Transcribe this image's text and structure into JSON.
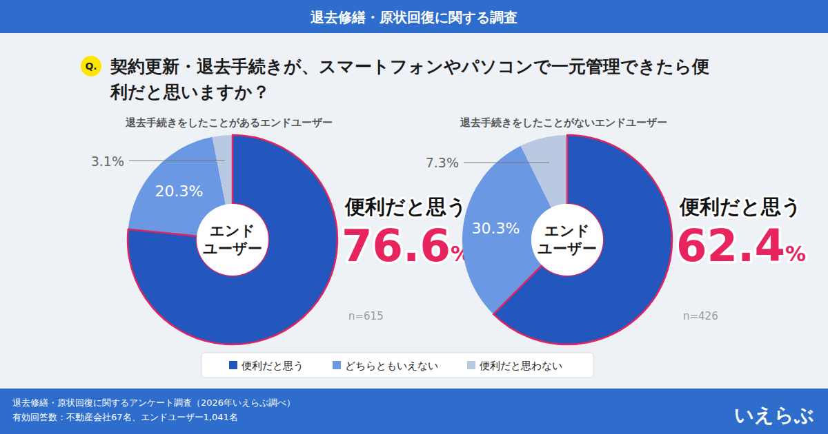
{
  "header": {
    "title": "退去修繕・原状回復に関する調査"
  },
  "question": {
    "badge": "Q.",
    "text": "契約更新・退去手続きが、スマートフォンやパソコンで一元管理できたら便利だと思いますか？"
  },
  "chart_data": [
    {
      "type": "pie",
      "title": "退去手続きをしたことがあるエンドユーザー",
      "categories": [
        "便利だと思う",
        "どちらともいえない",
        "便利だと思わない"
      ],
      "values": [
        76.6,
        20.3,
        3.1
      ],
      "value_labels": [
        "76.6%",
        "20.3%",
        "3.1%"
      ],
      "colors": [
        "#2457be",
        "#6b98e2",
        "#b9c9e2"
      ],
      "data_labels": true,
      "legend": "bottom",
      "center_text": [
        "エンド",
        "ユーザー"
      ],
      "note": "n=615"
    },
    {
      "type": "pie",
      "title": "退去手続きをしたことがないエンドユーザー",
      "categories": [
        "便利だと思う",
        "どちらともいえない",
        "便利だと思わない"
      ],
      "values": [
        62.4,
        30.3,
        7.3
      ],
      "value_labels": [
        "62.4%",
        "30.3%",
        "7.3%"
      ],
      "colors": [
        "#2457be",
        "#6b98e2",
        "#b9c9e2"
      ],
      "data_labels": true,
      "legend": "bottom",
      "center_text": [
        "エンド",
        "ユーザー"
      ],
      "note": "n=426"
    }
  ],
  "footer": {
    "lines": [
      "退去修繕・原状回復に関するアンケート調査（2026年いえらぶ調べ）",
      "有効回答数：不動産会社67名、エンドユーザー1,041名"
    ]
  },
  "logo": "いえらぶ"
}
